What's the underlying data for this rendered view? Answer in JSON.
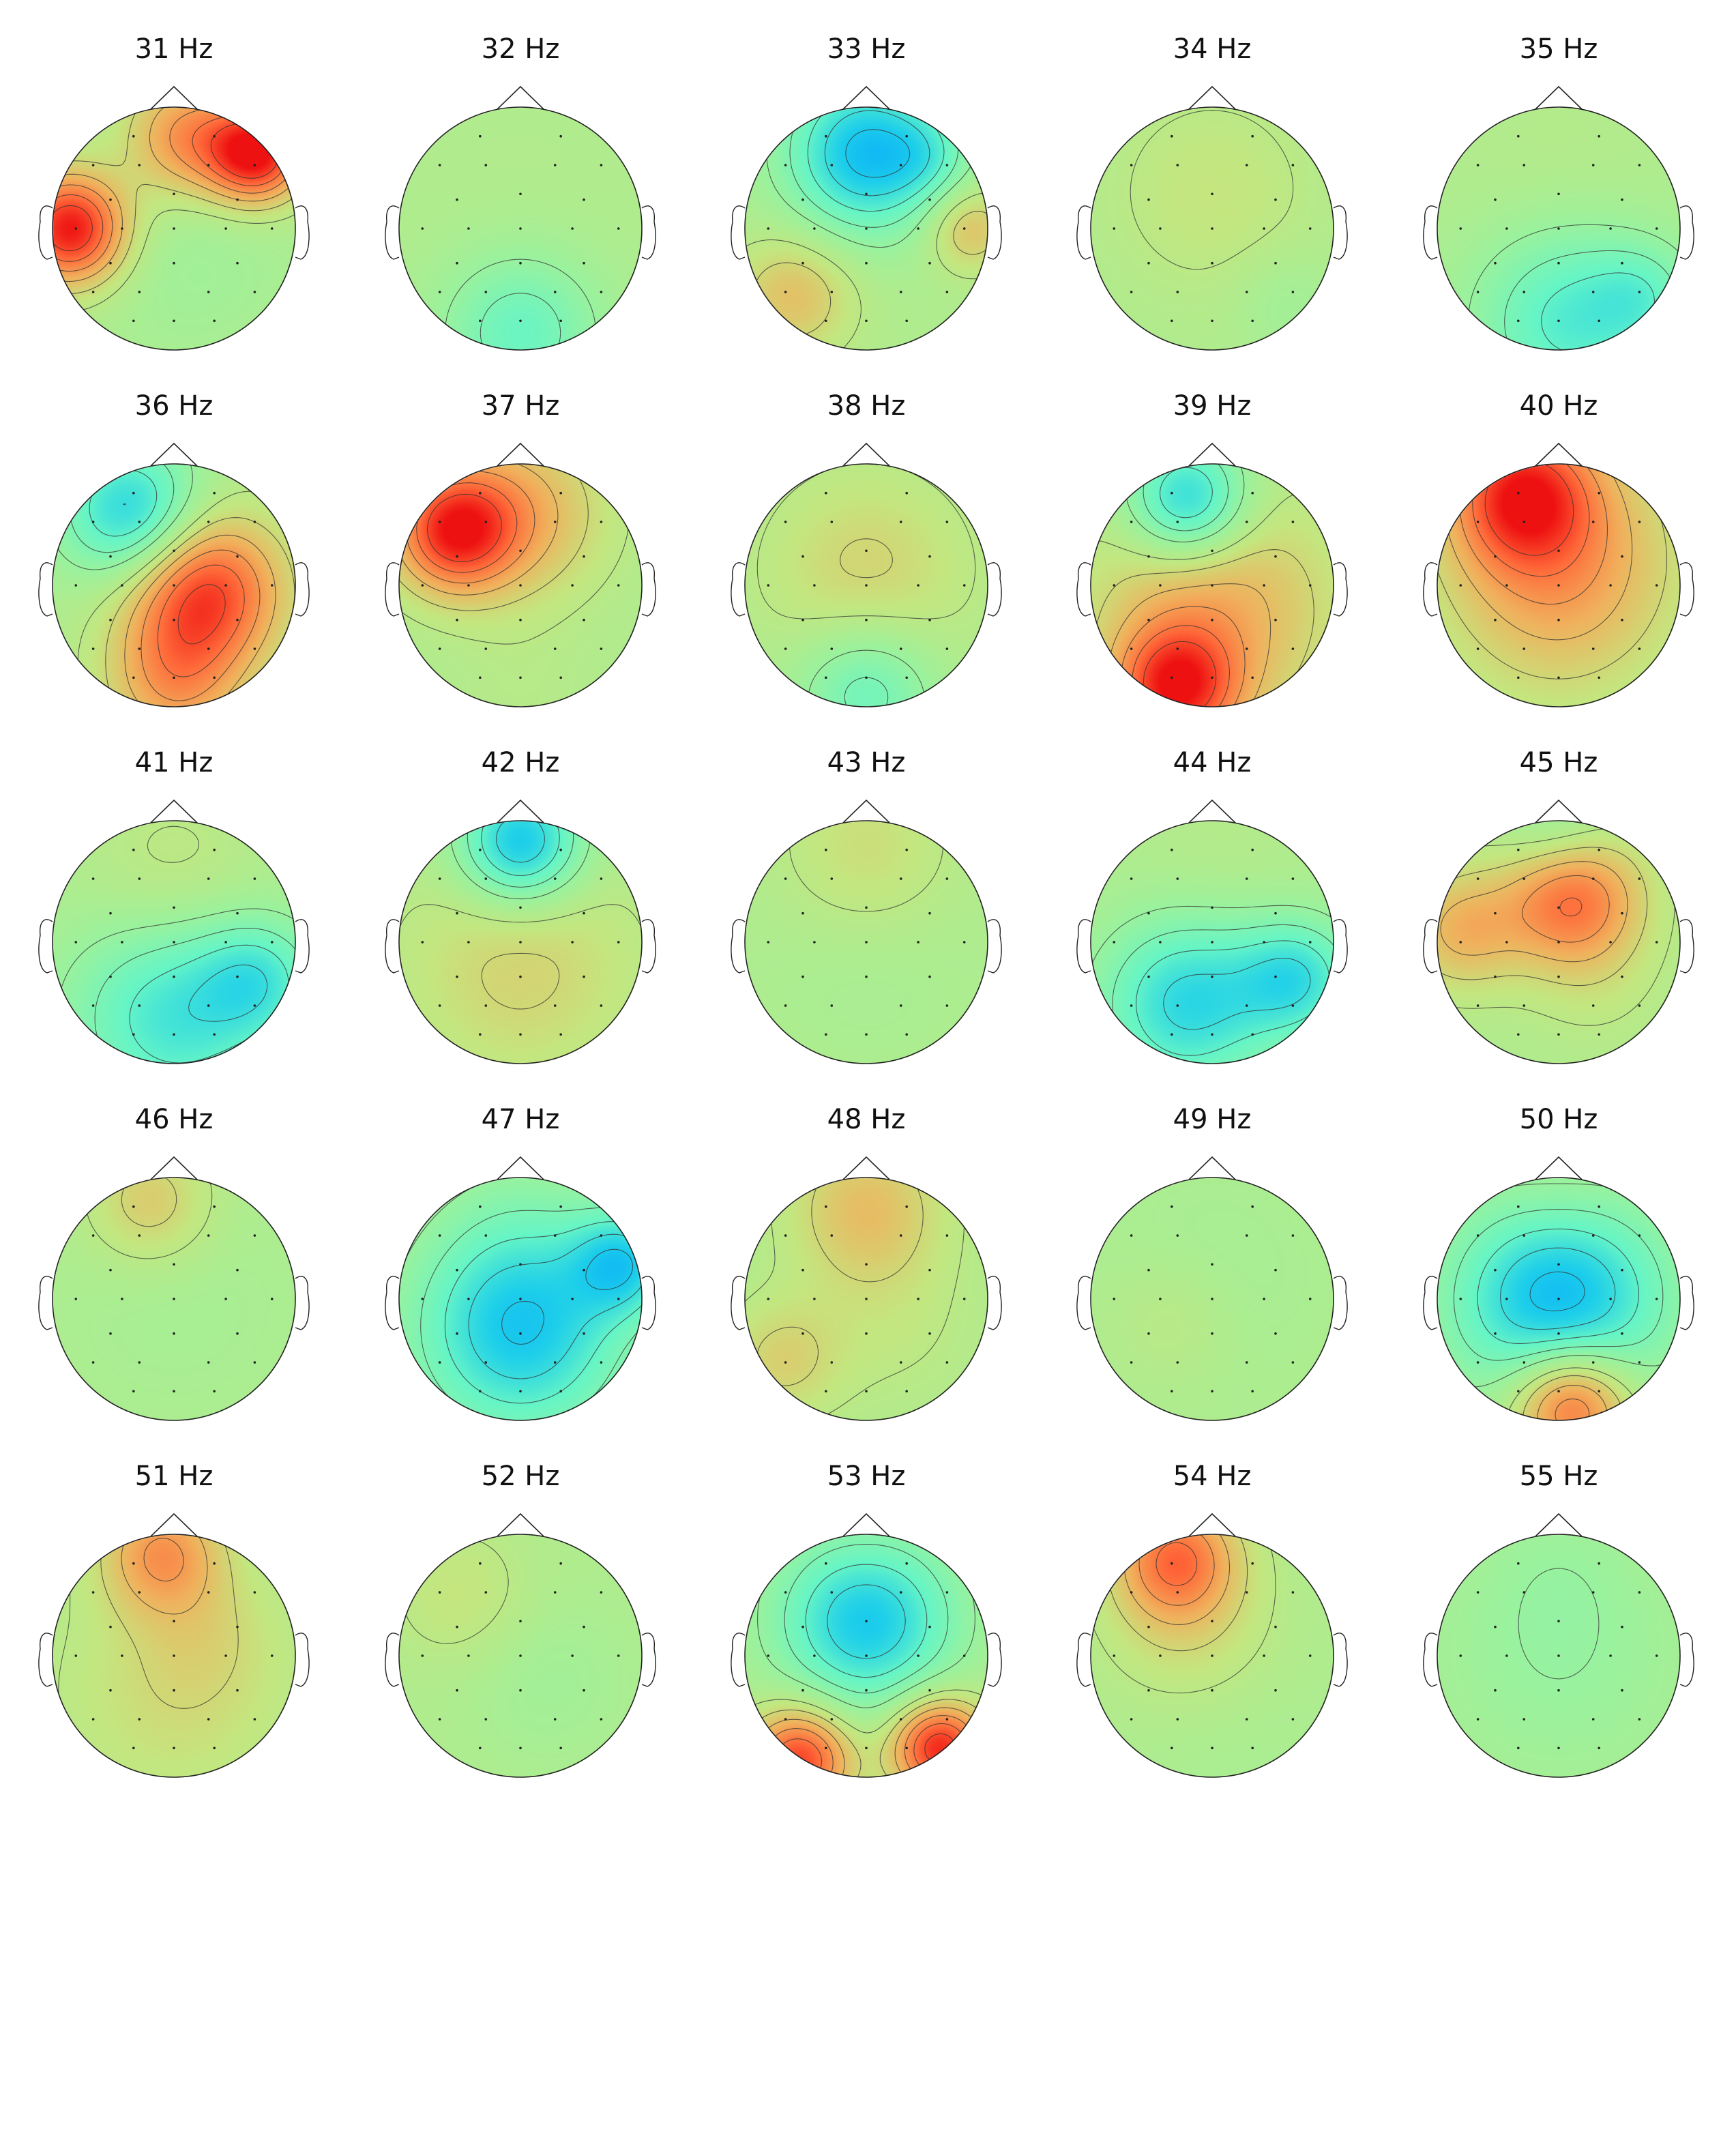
{
  "figure": {
    "colormap": [
      "#00a0ff",
      "#1ecfea",
      "#66f5c6",
      "#99f29e",
      "#c4e67f",
      "#f0b15c",
      "#ff6a3a",
      "#ee1111"
    ],
    "outline_color": "#222222",
    "contour_color": "#333333",
    "sensor_color": "#222222"
  },
  "panels": [
    {
      "title": "31 Hz",
      "blobs": [
        [
          -0.85,
          0.0,
          0.32,
          1.0
        ],
        [
          0.68,
          0.62,
          0.28,
          1.0
        ],
        [
          0.1,
          0.75,
          0.35,
          0.55
        ],
        [
          0.1,
          -0.2,
          0.6,
          -0.1
        ]
      ]
    },
    {
      "title": "32 Hz",
      "blobs": [
        [
          0.0,
          -0.85,
          0.45,
          -0.4
        ],
        [
          0.0,
          0.2,
          0.7,
          0.02
        ]
      ]
    },
    {
      "title": "33 Hz",
      "blobs": [
        [
          0.0,
          0.62,
          0.45,
          -0.8
        ],
        [
          0.5,
          0.6,
          0.25,
          -0.2
        ],
        [
          -0.6,
          -0.55,
          0.35,
          0.35
        ],
        [
          0.85,
          0.0,
          0.25,
          0.35
        ]
      ]
    },
    {
      "title": "34 Hz",
      "blobs": [
        [
          0.0,
          0.3,
          0.6,
          0.15
        ],
        [
          0.6,
          -0.6,
          0.3,
          -0.1
        ]
      ]
    },
    {
      "title": "35 Hz",
      "blobs": [
        [
          0.1,
          -0.75,
          0.55,
          -0.5
        ],
        [
          0.7,
          -0.55,
          0.3,
          -0.25
        ],
        [
          0.0,
          0.4,
          0.6,
          0.05
        ]
      ]
    },
    {
      "title": "36 Hz",
      "blobs": [
        [
          -0.35,
          0.6,
          0.4,
          -0.7
        ],
        [
          0.25,
          -0.05,
          0.45,
          0.85
        ],
        [
          0.0,
          -0.8,
          0.4,
          0.45
        ]
      ]
    },
    {
      "title": "37 Hz",
      "blobs": [
        [
          -0.55,
          0.45,
          0.35,
          0.85
        ],
        [
          0.0,
          0.6,
          0.5,
          0.4
        ],
        [
          0.0,
          -0.85,
          0.4,
          0.05
        ]
      ]
    },
    {
      "title": "38 Hz",
      "blobs": [
        [
          0.0,
          0.1,
          0.6,
          0.25
        ],
        [
          0.0,
          -0.85,
          0.4,
          -0.4
        ]
      ]
    },
    {
      "title": "39 Hz",
      "blobs": [
        [
          -0.2,
          0.7,
          0.35,
          -0.75
        ],
        [
          0.0,
          -0.2,
          0.7,
          0.45
        ],
        [
          -0.3,
          -0.85,
          0.35,
          0.8
        ]
      ]
    },
    {
      "title": "40 Hz",
      "blobs": [
        [
          -0.3,
          0.75,
          0.4,
          0.75
        ],
        [
          0.0,
          0.3,
          0.7,
          0.4
        ],
        [
          0.0,
          -0.2,
          0.6,
          0.15
        ]
      ]
    },
    {
      "title": "41 Hz",
      "blobs": [
        [
          0.0,
          -0.6,
          0.6,
          -0.55
        ],
        [
          0.7,
          -0.3,
          0.35,
          -0.4
        ],
        [
          0.0,
          0.5,
          0.5,
          0.15
        ]
      ]
    },
    {
      "title": "42 Hz",
      "blobs": [
        [
          0.0,
          0.82,
          0.35,
          -0.8
        ],
        [
          0.0,
          -0.2,
          0.7,
          0.25
        ]
      ]
    },
    {
      "title": "43 Hz",
      "blobs": [
        [
          0.0,
          0.75,
          0.5,
          0.2
        ],
        [
          0.0,
          -0.1,
          0.6,
          -0.05
        ]
      ]
    },
    {
      "title": "44 Hz",
      "blobs": [
        [
          -0.2,
          -0.5,
          0.5,
          -0.65
        ],
        [
          0.7,
          -0.3,
          0.35,
          -0.55
        ],
        [
          0.0,
          0.6,
          0.5,
          0.05
        ]
      ]
    },
    {
      "title": "45 Hz",
      "blobs": [
        [
          0.1,
          0.4,
          0.4,
          0.75
        ],
        [
          -0.8,
          0.1,
          0.35,
          0.4
        ],
        [
          0.0,
          0.85,
          0.35,
          -0.3
        ],
        [
          0.3,
          -0.3,
          0.4,
          0.1
        ]
      ]
    },
    {
      "title": "46 Hz",
      "blobs": [
        [
          0.0,
          0.0,
          0.7,
          -0.05
        ],
        [
          -0.2,
          0.8,
          0.35,
          0.3
        ]
      ]
    },
    {
      "title": "47 Hz",
      "blobs": [
        [
          0.0,
          -0.25,
          0.6,
          -0.75
        ],
        [
          0.85,
          0.3,
          0.3,
          -0.6
        ],
        [
          0.0,
          0.6,
          0.5,
          -0.1
        ]
      ]
    },
    {
      "title": "48 Hz",
      "blobs": [
        [
          0.0,
          0.75,
          0.45,
          0.35
        ],
        [
          -0.7,
          -0.5,
          0.35,
          0.25
        ],
        [
          0.2,
          -0.2,
          0.5,
          0.1
        ]
      ]
    },
    {
      "title": "49 Hz",
      "blobs": [
        [
          -0.35,
          -0.2,
          0.35,
          0.1
        ],
        [
          0.0,
          0.2,
          0.7,
          -0.05
        ]
      ]
    },
    {
      "title": "50 Hz",
      "blobs": [
        [
          0.0,
          0.0,
          0.6,
          -0.85
        ],
        [
          0.1,
          -0.85,
          0.35,
          0.85
        ],
        [
          0.0,
          0.8,
          0.4,
          0.1
        ]
      ]
    },
    {
      "title": "51 Hz",
      "blobs": [
        [
          -0.1,
          0.85,
          0.35,
          0.5
        ],
        [
          0.3,
          0.2,
          0.4,
          0.1
        ],
        [
          0.0,
          -0.3,
          0.7,
          0.2
        ]
      ]
    },
    {
      "title": "52 Hz",
      "blobs": [
        [
          0.2,
          -0.2,
          0.5,
          -0.1
        ],
        [
          -0.5,
          0.5,
          0.4,
          0.15
        ],
        [
          0.0,
          0.0,
          0.8,
          0.02
        ]
      ]
    },
    {
      "title": "53 Hz",
      "blobs": [
        [
          0.0,
          0.3,
          0.5,
          -0.75
        ],
        [
          -0.55,
          -0.85,
          0.3,
          0.85
        ],
        [
          0.6,
          -0.75,
          0.28,
          0.95
        ],
        [
          0.0,
          0.85,
          0.35,
          0.05
        ]
      ]
    },
    {
      "title": "54 Hz",
      "blobs": [
        [
          -0.3,
          0.8,
          0.35,
          0.65
        ],
        [
          -0.2,
          0.2,
          0.5,
          0.2
        ],
        [
          0.0,
          -0.5,
          0.6,
          -0.05
        ]
      ]
    },
    {
      "title": "55 Hz",
      "blobs": [
        [
          0.0,
          0.0,
          0.8,
          -0.15
        ],
        [
          0.0,
          0.7,
          0.4,
          -0.05
        ]
      ]
    }
  ]
}
